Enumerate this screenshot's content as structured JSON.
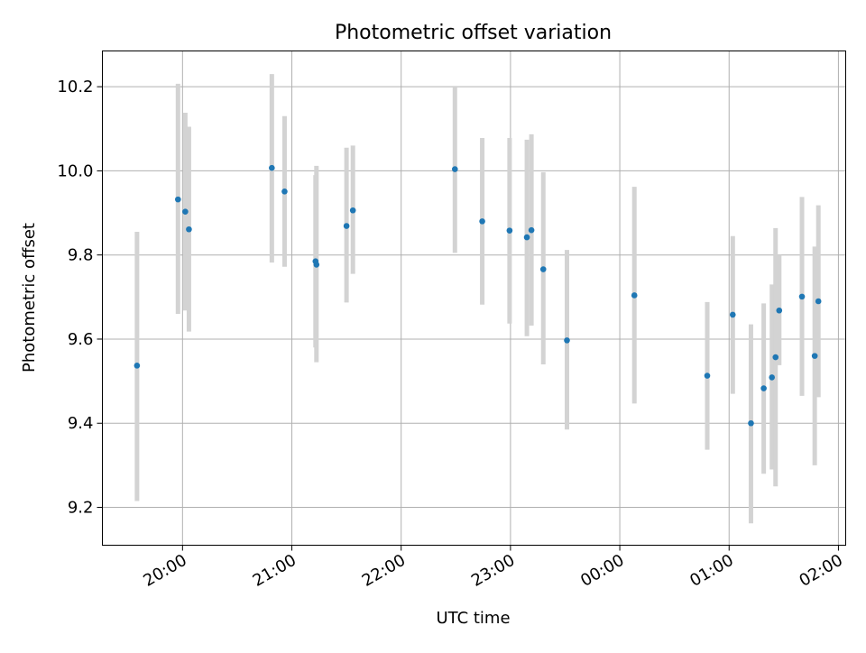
{
  "chart_data": {
    "type": "scatter",
    "title": "Photometric offset variation",
    "xlabel": "UTC time",
    "ylabel": "Photometric offset",
    "grid": true,
    "colors": {
      "point": "#1f77b4",
      "errorbar": "#d3d3d3",
      "grid": "#b0b0b0"
    },
    "x_ticks": [
      {
        "t": "19:59:59",
        "label": "20:00"
      },
      {
        "t": "21:00:00",
        "label": "21:00"
      },
      {
        "t": "22:00:00",
        "label": "22:00"
      },
      {
        "t": "23:00:00",
        "label": "23:00"
      },
      {
        "t": "00:00:00",
        "label": "00:00"
      },
      {
        "t": "01:00:00",
        "label": "01:00"
      },
      {
        "t": "02:00:00",
        "label": "02:00"
      }
    ],
    "y_ticks": [
      {
        "v": 9.2,
        "label": "9.2"
      },
      {
        "v": 9.4,
        "label": "9.4"
      },
      {
        "v": 9.6,
        "label": "9.6"
      },
      {
        "v": 9.8,
        "label": "9.8"
      },
      {
        "v": 10.0,
        "label": "10.0"
      },
      {
        "v": 10.2,
        "label": "10.2"
      }
    ],
    "xlim": [
      "19:16:00",
      "02:04:00"
    ],
    "ylim": [
      9.11,
      10.285
    ],
    "series": [
      {
        "points": [
          {
            "t": "19:35:00",
            "y": 9.537,
            "lo": 9.215,
            "hi": 9.855
          },
          {
            "t": "19:57:30",
            "y": 9.932,
            "lo": 9.66,
            "hi": 10.207
          },
          {
            "t": "20:01:30",
            "y": 9.903,
            "lo": 9.668,
            "hi": 10.138
          },
          {
            "t": "20:03:30",
            "y": 9.861,
            "lo": 9.618,
            "hi": 10.105
          },
          {
            "t": "20:49:00",
            "y": 10.007,
            "lo": 9.782,
            "hi": 10.23
          },
          {
            "t": "20:56:00",
            "y": 9.951,
            "lo": 9.772,
            "hi": 10.13
          },
          {
            "t": "21:13:00",
            "y": 9.785,
            "lo": 9.58,
            "hi": 9.99
          },
          {
            "t": "21:13:30",
            "y": 9.777,
            "lo": 9.545,
            "hi": 10.012
          },
          {
            "t": "21:30:00",
            "y": 9.869,
            "lo": 9.687,
            "hi": 10.055
          },
          {
            "t": "21:33:30",
            "y": 9.906,
            "lo": 9.755,
            "hi": 10.06
          },
          {
            "t": "22:29:30",
            "y": 10.004,
            "lo": 9.805,
            "hi": 10.202
          },
          {
            "t": "22:44:30",
            "y": 9.88,
            "lo": 9.682,
            "hi": 10.078
          },
          {
            "t": "22:59:30",
            "y": 9.858,
            "lo": 9.637,
            "hi": 10.078
          },
          {
            "t": "23:09:00",
            "y": 9.842,
            "lo": 9.607,
            "hi": 10.074
          },
          {
            "t": "23:11:30",
            "y": 9.859,
            "lo": 9.632,
            "hi": 10.087
          },
          {
            "t": "23:18:00",
            "y": 9.766,
            "lo": 9.54,
            "hi": 9.997
          },
          {
            "t": "23:31:00",
            "y": 9.597,
            "lo": 9.385,
            "hi": 9.812
          },
          {
            "t": "00:08:00",
            "y": 9.704,
            "lo": 9.447,
            "hi": 9.962
          },
          {
            "t": "00:48:00",
            "y": 9.513,
            "lo": 9.337,
            "hi": 9.688
          },
          {
            "t": "01:02:00",
            "y": 9.658,
            "lo": 9.47,
            "hi": 9.845
          },
          {
            "t": "01:12:00",
            "y": 9.4,
            "lo": 9.162,
            "hi": 9.635
          },
          {
            "t": "01:19:00",
            "y": 9.483,
            "lo": 9.28,
            "hi": 9.685
          },
          {
            "t": "01:23:30",
            "y": 9.509,
            "lo": 9.29,
            "hi": 9.73
          },
          {
            "t": "01:25:30",
            "y": 9.557,
            "lo": 9.25,
            "hi": 9.864
          },
          {
            "t": "01:27:30",
            "y": 9.668,
            "lo": 9.538,
            "hi": 9.8
          },
          {
            "t": "01:40:00",
            "y": 9.701,
            "lo": 9.465,
            "hi": 9.938
          },
          {
            "t": "01:47:00",
            "y": 9.56,
            "lo": 9.3,
            "hi": 9.82
          },
          {
            "t": "01:49:00",
            "y": 9.69,
            "lo": 9.462,
            "hi": 9.918
          }
        ]
      }
    ]
  }
}
